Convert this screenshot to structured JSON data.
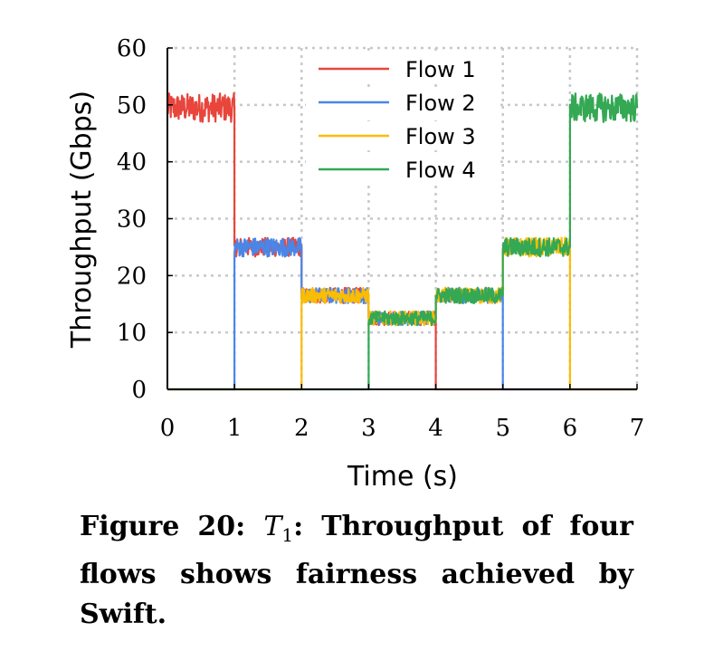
{
  "chart_data": {
    "type": "line",
    "title": "",
    "xlabel": "Time (s)",
    "ylabel": "Throughput (Gbps)",
    "xlim": [
      0,
      7
    ],
    "ylim": [
      0,
      60
    ],
    "xticks": [
      0,
      1,
      2,
      3,
      4,
      5,
      6,
      7
    ],
    "yticks": [
      0,
      10,
      20,
      30,
      40,
      50,
      60
    ],
    "grid": true,
    "legend_position": "top-center",
    "series": [
      {
        "name": "Flow 1",
        "color": "#e8453c",
        "x": [
          0,
          1,
          1,
          2,
          2,
          3,
          3,
          4,
          4,
          7
        ],
        "y": [
          49.5,
          49.5,
          25,
          25,
          16.5,
          16.5,
          12.5,
          12.5,
          0,
          0
        ]
      },
      {
        "name": "Flow 2",
        "color": "#4a86e8",
        "x": [
          0,
          1,
          1,
          2,
          2,
          3,
          3,
          4,
          4,
          5,
          5,
          7
        ],
        "y": [
          0,
          0,
          25,
          25,
          16.5,
          16.5,
          12.5,
          12.5,
          16.5,
          16.5,
          0,
          0
        ]
      },
      {
        "name": "Flow 3",
        "color": "#fbbc05",
        "x": [
          0,
          2,
          2,
          3,
          3,
          4,
          4,
          5,
          5,
          6,
          6,
          7
        ],
        "y": [
          0,
          0,
          16.5,
          16.5,
          12.5,
          12.5,
          16.5,
          16.5,
          25,
          25,
          0,
          0
        ]
      },
      {
        "name": "Flow 4",
        "color": "#34a853",
        "x": [
          0,
          3,
          3,
          4,
          4,
          5,
          5,
          6,
          6,
          7
        ],
        "y": [
          0,
          0,
          12.5,
          12.5,
          16.5,
          16.5,
          25,
          25,
          49.5,
          49.5
        ]
      }
    ]
  },
  "caption": {
    "label": "Figure 20:",
    "math_symbol": "T",
    "math_subscript": "1",
    "text": ": Throughput of four flows shows fairness achieved by Swift."
  }
}
